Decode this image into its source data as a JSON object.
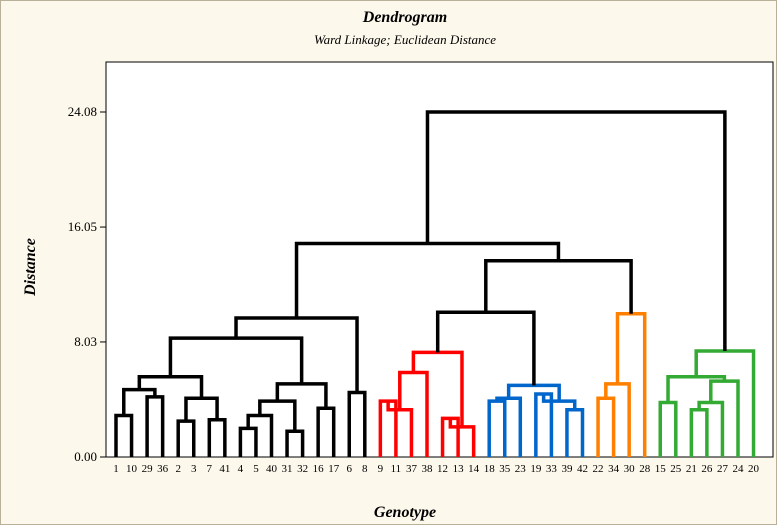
{
  "chart_data": {
    "type": "dendrogram",
    "title": "Dendrogram",
    "subtitle": "Ward Linkage; Euclidean Distance",
    "xlabel": "Genotype",
    "ylabel": "Distance",
    "ylim": [
      0,
      24.08
    ],
    "yticks": [
      "0.00",
      "8.03",
      "16.05",
      "24.08"
    ],
    "leaves": [
      "1",
      "10",
      "29",
      "36",
      "2",
      "3",
      "7",
      "41",
      "4",
      "5",
      "40",
      "31",
      "32",
      "16",
      "17",
      "6",
      "8",
      "9",
      "11",
      "37",
      "38",
      "12",
      "13",
      "14",
      "18",
      "35",
      "23",
      "19",
      "33",
      "39",
      "42",
      "22",
      "34",
      "30",
      "28",
      "15",
      "25",
      "21",
      "26",
      "27",
      "24",
      "20"
    ],
    "cluster_colors": [
      "#000000",
      "#ff0000",
      "#0066cc",
      "#ff7f00",
      "#33aa33"
    ],
    "merges": [
      [
        "L:1",
        "L:10",
        2.9,
        0
      ],
      [
        "L:29",
        "L:36",
        4.2,
        0
      ],
      [
        "M:0",
        "M:1",
        4.7,
        0
      ],
      [
        "L:2",
        "L:3",
        2.5,
        0
      ],
      [
        "L:7",
        "L:41",
        2.6,
        0
      ],
      [
        "M:3",
        "M:4",
        4.1,
        0
      ],
      [
        "M:2",
        "M:5",
        5.6,
        0
      ],
      [
        "L:4",
        "L:5",
        2.0,
        0
      ],
      [
        "M:7",
        "L:40",
        2.9,
        0
      ],
      [
        "L:31",
        "L:32",
        1.8,
        0
      ],
      [
        "M:8",
        "M:9",
        3.9,
        0
      ],
      [
        "L:16",
        "L:17",
        3.4,
        0
      ],
      [
        "M:10",
        "M:11",
        5.1,
        0
      ],
      [
        "M:6",
        "M:12",
        8.3,
        0
      ],
      [
        "L:6",
        "L:8",
        4.5,
        0
      ],
      [
        "M:13",
        "M:14",
        9.7,
        0
      ],
      [
        "L:9",
        "L:11",
        3.9,
        1
      ],
      [
        "M:16",
        "L:37",
        3.3,
        1
      ],
      [
        "L:38",
        "M:17",
        5.9,
        1
      ],
      [
        "L:12",
        "L:13",
        2.7,
        1
      ],
      [
        "M:19",
        "L:14",
        2.1,
        1
      ],
      [
        "M:18",
        "M:20",
        7.3,
        1
      ],
      [
        "L:18",
        "L:35",
        3.9,
        2
      ],
      [
        "M:22",
        "L:23",
        4.1,
        2
      ],
      [
        "L:19",
        "L:33",
        4.4,
        2
      ],
      [
        "L:39",
        "L:42",
        3.3,
        2
      ],
      [
        "M:24",
        "M:25",
        3.9,
        2
      ],
      [
        "M:23",
        "M:26",
        5.0,
        2
      ],
      [
        "M:21",
        "M:27",
        10.1,
        0
      ],
      [
        "L:22",
        "L:34",
        4.1,
        3
      ],
      [
        "M:29",
        "L:30",
        5.1,
        3
      ],
      [
        "M:30",
        "L:28",
        10.0,
        3
      ],
      [
        "M:28",
        "M:31",
        13.7,
        0
      ],
      [
        "M:15",
        "M:32",
        14.9,
        0
      ],
      [
        "L:15",
        "L:25",
        3.8,
        4
      ],
      [
        "L:21",
        "L:26",
        3.3,
        4
      ],
      [
        "M:35",
        "L:27",
        3.8,
        4
      ],
      [
        "M:36",
        "L:24",
        5.3,
        4
      ],
      [
        "M:34",
        "M:37",
        5.6,
        4
      ],
      [
        "M:38",
        "L:20",
        7.4,
        4
      ],
      [
        "M:33",
        "M:39",
        24.08,
        0
      ]
    ]
  }
}
